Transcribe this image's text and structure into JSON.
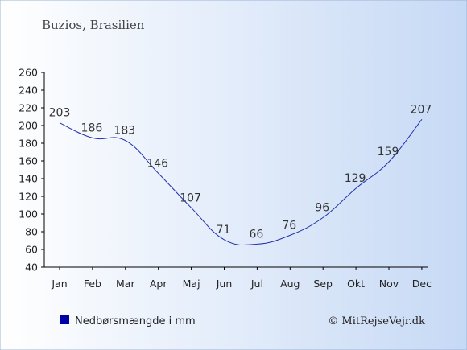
{
  "header": {
    "title": "Buzios, Brasilien"
  },
  "legend": {
    "label": "Nedbørsmængde i mm",
    "color": "#0000aa"
  },
  "copyright": "© MitRejseVejr.dk",
  "colors": {
    "bg_top": "#ffffff",
    "bg_bottom": "#c6d9f5",
    "line": "#2233aa",
    "text": "#333333"
  },
  "chart_data": {
    "type": "line",
    "categories": [
      "Jan",
      "Feb",
      "Mar",
      "Apr",
      "Maj",
      "Jun",
      "Jul",
      "Aug",
      "Sep",
      "Okt",
      "Nov",
      "Dec"
    ],
    "series": [
      {
        "name": "Nedbørsmængde i mm",
        "values": [
          203,
          186,
          183,
          146,
          107,
          71,
          66,
          76,
          96,
          129,
          159,
          207
        ]
      }
    ],
    "yticks": [
      40,
      60,
      80,
      100,
      120,
      140,
      160,
      180,
      200,
      220,
      240,
      260
    ],
    "ylim": [
      40,
      260
    ],
    "grid": false,
    "legend_position": "bottom-left"
  }
}
